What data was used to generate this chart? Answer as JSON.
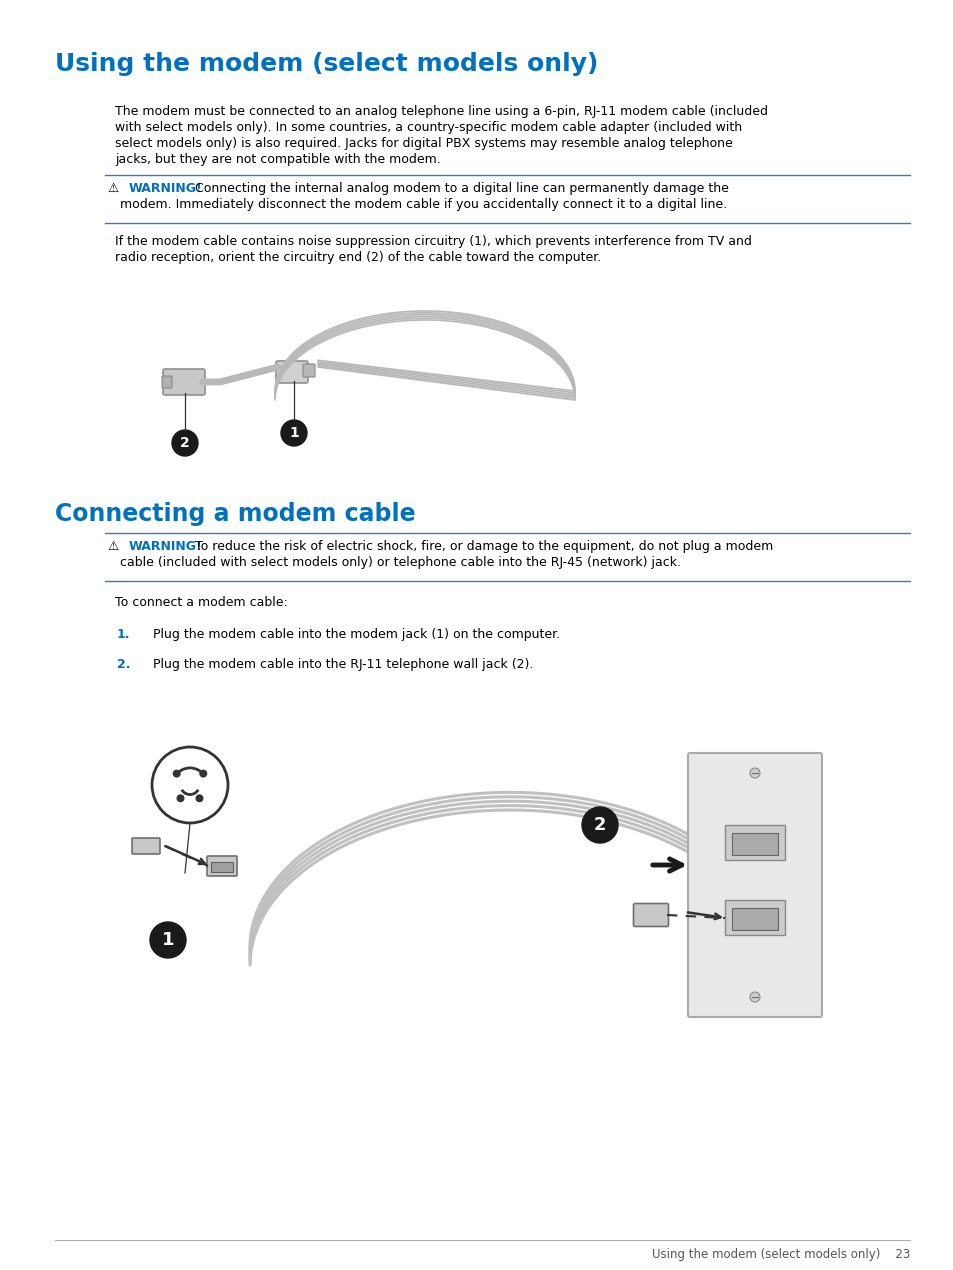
{
  "page_bg": "#ffffff",
  "title1": "Using the modem (select models only)",
  "title1_color": "#0070C0",
  "title2": "Connecting a modem cable",
  "title2_color": "#0070C0",
  "warning_color": "#0070C0",
  "line_color": "#4472C4",
  "body_fontsize": 9.0,
  "title1_fontsize": 18,
  "title2_fontsize": 17,
  "footer_text": "Using the modem (select models only)    23",
  "para1_line1": "The modem must be connected to an analog telephone line using a 6-pin, RJ-11 modem cable (included",
  "para1_line2": "with select models only). In some countries, a country-specific modem cable adapter (included with",
  "para1_line3": "select models only) is also required. Jacks for digital PBX systems may resemble analog telephone",
  "para1_line4": "jacks, but they are not compatible with the modem.",
  "w1_text1": "Connecting the internal analog modem to a digital line can permanently damage the",
  "w1_text2": "modem. Immediately disconnect the modem cable if you accidentally connect it to a digital line.",
  "para2_line1": "If the modem cable contains noise suppression circuitry (1), which prevents interference from TV and",
  "para2_line2": "radio reception, orient the circuitry end (2) of the cable toward the computer.",
  "w2_text1": "To reduce the risk of electric shock, fire, or damage to the equipment, do not plug a modem",
  "w2_text2": "cable (included with select models only) or telephone cable into the RJ-45 (network) jack.",
  "para3": "To connect a modem cable:",
  "step1": "Plug the modem cable into the modem jack (1) on the computer.",
  "step2": "Plug the modem cable into the RJ-11 telephone wall jack (2)."
}
